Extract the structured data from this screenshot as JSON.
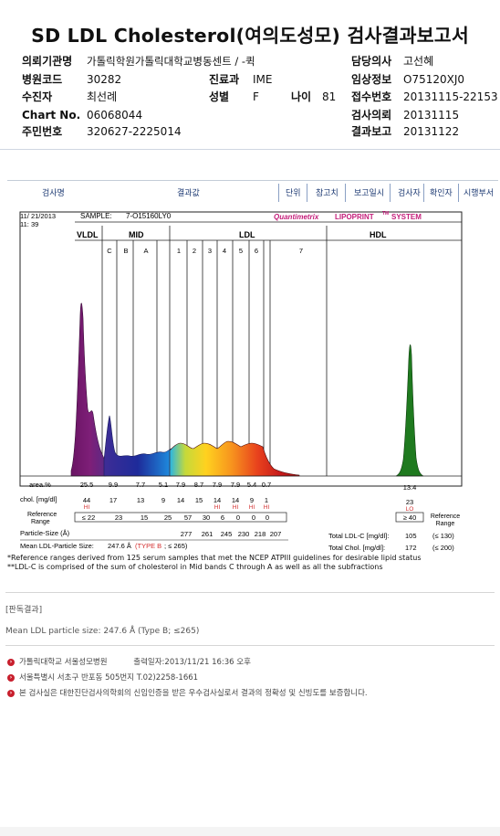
{
  "title": "SD LDL Cholesterol(여의도성모) 검사결과보고서",
  "header": {
    "left": [
      {
        "label": "의뢰기관명",
        "value": "가톨릭학원가톨릭대학교병동센트 / -퀵"
      },
      {
        "label": "병원코드",
        "value": "30282"
      },
      {
        "label": "수진자",
        "value": "최선례"
      },
      {
        "label": "Chart No.",
        "value": "06068044"
      },
      {
        "label": "주민번호",
        "value": "320627-2225014"
      }
    ],
    "middle": [
      {
        "label": "진료과",
        "value": "IME"
      },
      {
        "label": "성별",
        "value": "F"
      }
    ],
    "age": {
      "label": "나이",
      "value": "81"
    },
    "right": [
      {
        "label": "담당의사",
        "value": "고선혜"
      },
      {
        "label": "임상정보",
        "value": "O75120XJ0"
      },
      {
        "label": "접수번호",
        "value": "20131115-22153"
      },
      {
        "label": "검사의뢰",
        "value": "20131115"
      },
      {
        "label": "결과보고",
        "value": "20131122"
      }
    ]
  },
  "toolbar": {
    "test_name": "검사명",
    "result_value": "결과값",
    "unit": "단위",
    "reference": "참고치",
    "report_date": "보고일시",
    "examiner": "검사자",
    "confirmer": "확인자",
    "method": "시행부서"
  },
  "report": {
    "date": "11/ 21/2013",
    "time": "11: 39",
    "sample_label": "SAMPLE:",
    "sample_id": "7-O15160LY0",
    "system_brand": "Quantimetrix",
    "system_name": "LIPOPRINT",
    "system_tm": "TM",
    "system_suffix": "SYSTEM",
    "region_vldl": "VLDL",
    "region_mid": "MID",
    "region_ldl": "LDL",
    "region_hdl": "HDL",
    "mid_bands": [
      "C",
      "B",
      "A"
    ],
    "ldl_bands": [
      "1",
      "2",
      "3",
      "4",
      "5",
      "6",
      "7"
    ],
    "row_area_label": "area.%",
    "area_values": [
      "25.5",
      "9.9",
      "7.7",
      "5.1",
      "7.9",
      "8.7",
      "7.9",
      "7.9",
      "5.4",
      "0.7"
    ],
    "hdl_area": "13.4",
    "row_chol_label": "chol. [mg/dl]",
    "chol_values": [
      "44",
      "17",
      "13",
      "9",
      "14",
      "15",
      "14",
      "14",
      "9",
      "1"
    ],
    "chol_flags": [
      "HI",
      "",
      "",
      "",
      "",
      "",
      "HI",
      "HI",
      "HI",
      "HI"
    ],
    "hdl_chol": "23",
    "hdl_flag": "LO",
    "row_ref_label_1": "Reference",
    "row_ref_label_2": "Range",
    "ref_values": [
      "≤ 22",
      "23",
      "15",
      "25",
      "57",
      "30",
      "6",
      "0",
      "0",
      "0"
    ],
    "hdl_ref": "≥ 40",
    "ref_right_1": "Reference",
    "ref_right_2": "Range",
    "particle_label": "Particle-Size (Å)",
    "particle_values": [
      "277",
      "261",
      "245",
      "230",
      "218",
      "207"
    ],
    "mean_label": "Mean LDL-Particle Size:",
    "mean_value": "247.6 Å",
    "mean_type": "(TYPE B",
    "mean_ref": "; ≤ 265)",
    "total_ldl_label": "Total LDL-C [mg/dl]:",
    "total_ldl_value": "105",
    "total_ldl_ref": "(≤ 130)",
    "total_chol_label": "Total Chol. [mg/dl]:",
    "total_chol_value": "172",
    "total_chol_ref": "(≤ 200)",
    "footnote_1": "*Reference ranges derived from 125 serum samples that met the NCEP ATPIII guidelines for desirable lipid status",
    "footnote_2": "**LDL-C is comprised of the sum of cholesterol in Mid bands C through A as well as all the subfractions"
  },
  "interpretation": {
    "label": "[판독결과]",
    "text": "Mean LDL particle size: 247.6 Å  (Type B; ≤265)"
  },
  "footer": {
    "hospital": "가톨릭대학교 서울성모병원",
    "output_label": "출력일자:",
    "output_date": "2013/11/21 16:36 오후",
    "address": "서울특별시 서초구 반포동 505번지 T.02)2258-1661",
    "certification": "본 검사실은 대한진단검사의학회의 신임인증을 받은 우수검사실로서 결과의 정확성 및 신빙도를 보증합니다."
  },
  "colors": {
    "accent": "#1d3a73",
    "brand": "#c41e7a",
    "flag": "#d32f2f",
    "vldl_fill": "#7a1c6e",
    "hdl_fill": "#1f7a1f"
  }
}
